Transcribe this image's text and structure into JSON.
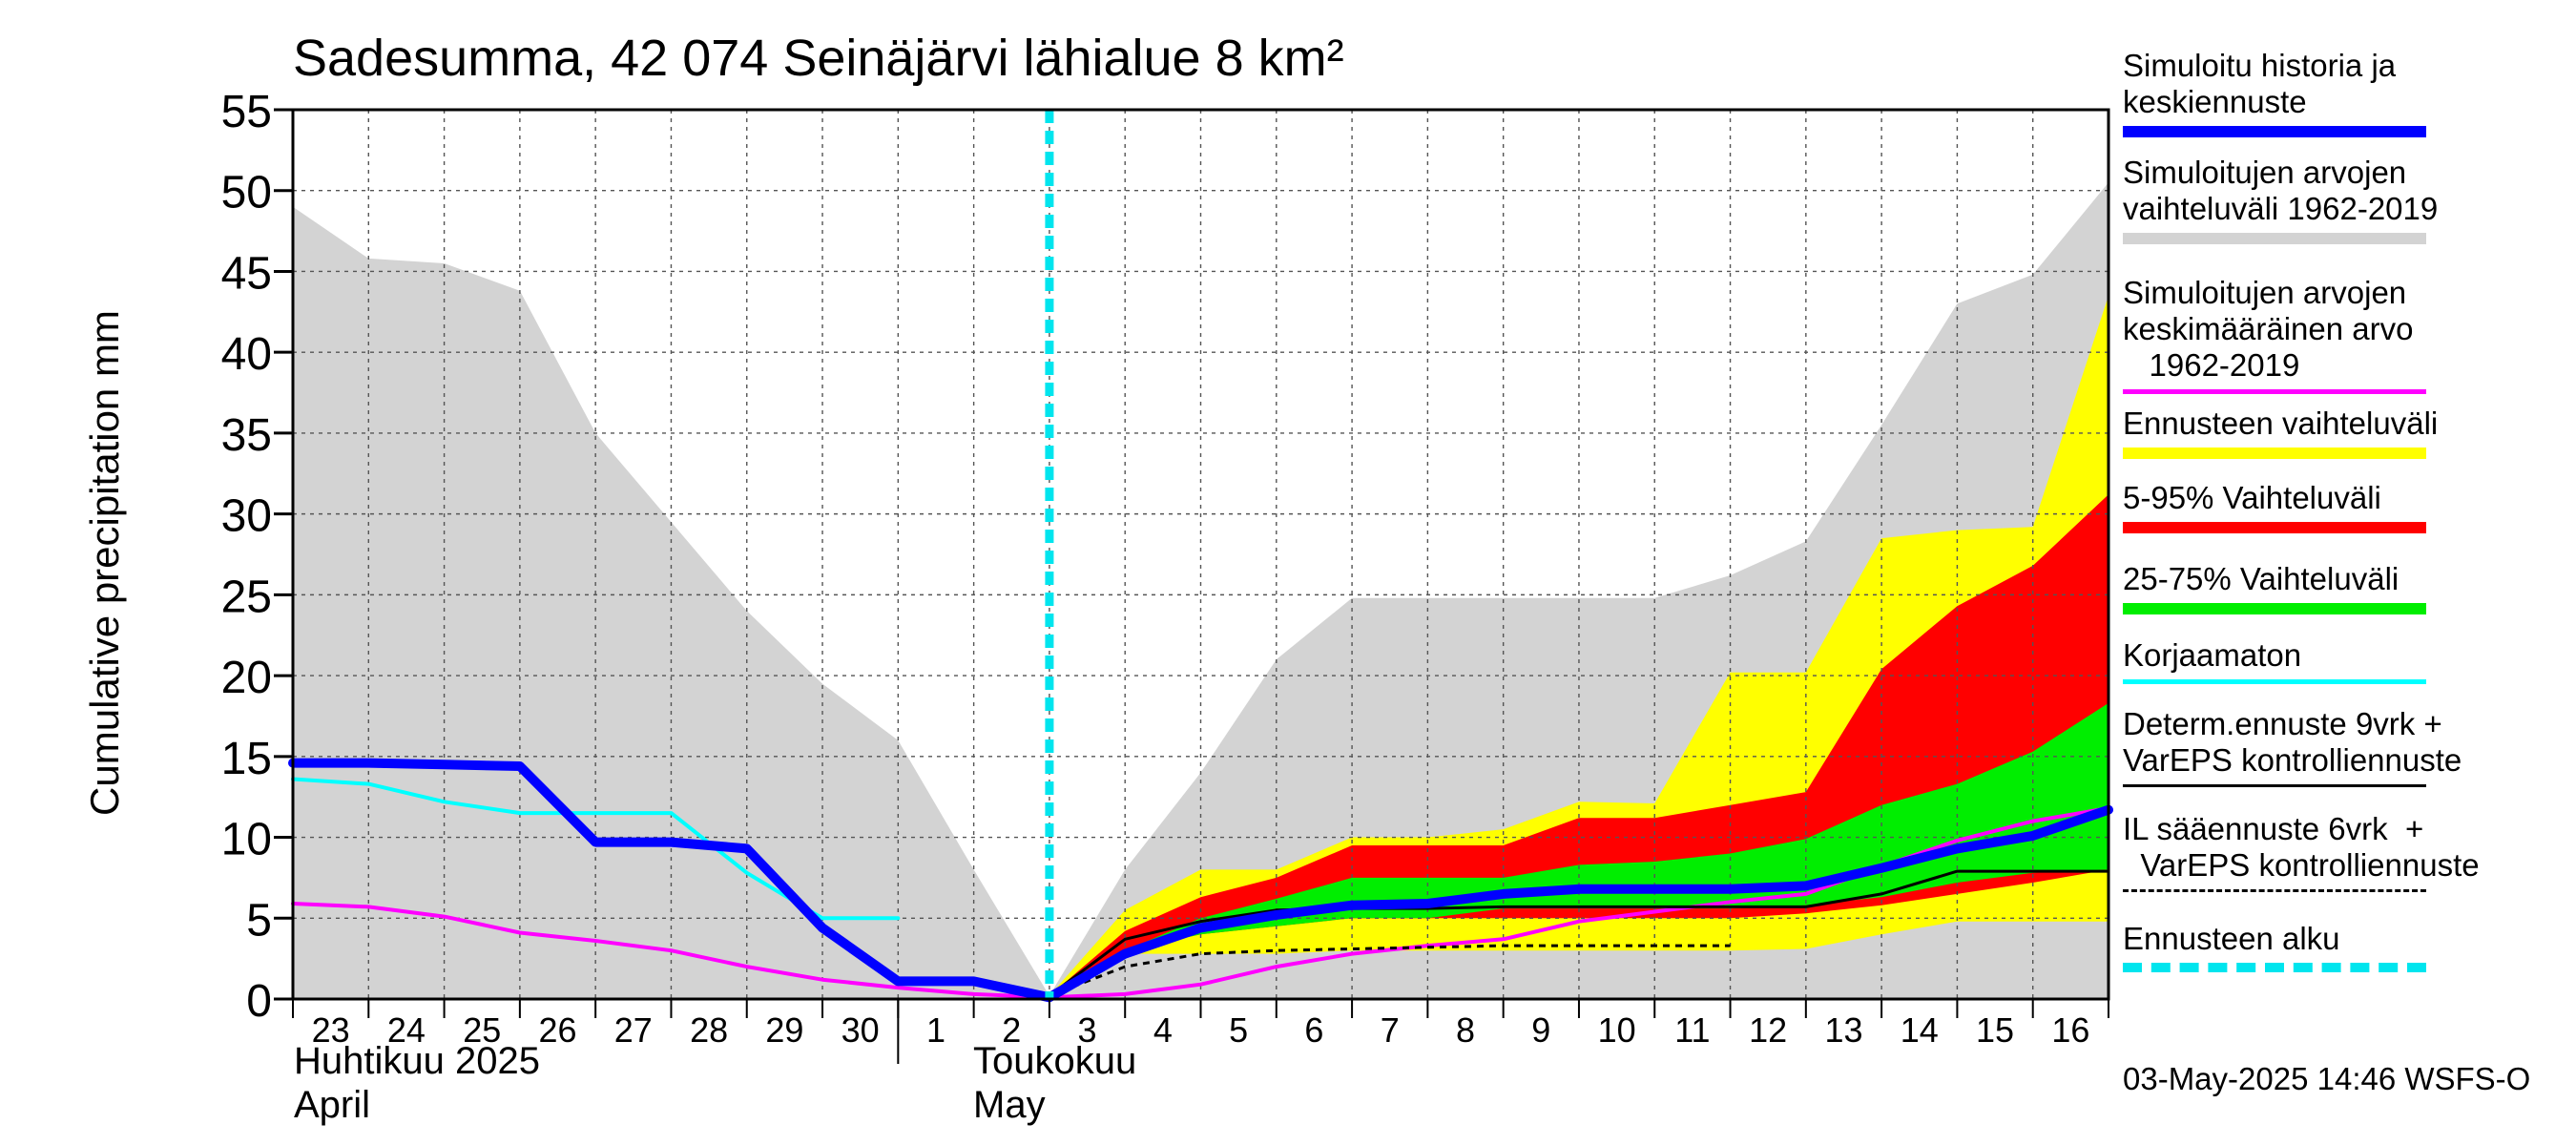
{
  "title": "Sadesumma, 42 074 Seinäjärvi lähialue 8 km²",
  "ylabel": "Cumulative precipitation   mm",
  "x_month_labels": {
    "april_fi": "Huhtikuu  2025",
    "april_en": "April",
    "may_fi": "Toukokuu",
    "may_en": "May"
  },
  "footer": "03-May-2025 14:46 WSFS-O",
  "legend": [
    {
      "label": "Simuloitu historia ja\nkeskiennuste",
      "color": "#0000ff",
      "style": "thick"
    },
    {
      "label": "Simuloitujen arvojen\nvaihteluväli 1962-2019",
      "color": "#d3d3d3",
      "style": "band"
    },
    {
      "label": "Simuloitujen arvojen\nkeskimääräinen arvo\n   1962-2019",
      "color": "#ff00ff",
      "style": "thin"
    },
    {
      "label": "Ennusteen vaihteluväli",
      "color": "#ffff00",
      "style": "band"
    },
    {
      "label": "5-95% Vaihteluväli",
      "color": "#ff0000",
      "style": "band"
    },
    {
      "label": "25-75% Vaihteluväli",
      "color": "#00ee00",
      "style": "band"
    },
    {
      "label": "Korjaamaton",
      "color": "#00ffff",
      "style": "thin"
    },
    {
      "label": "Determ.ennuste 9vrk +\nVarEPS kontrolliennuste",
      "color": "#000000",
      "style": "thinblack"
    },
    {
      "label": "IL sääennuste 6vrk  +\n  VarEPS kontrolliennuste",
      "color": "#000000",
      "style": "dashed"
    },
    {
      "label": "Ennusteen alku",
      "color": "#00e5ee",
      "style": "dotted"
    }
  ],
  "chart_data": {
    "type": "area",
    "title": "Sadesumma, 42 074 Seinäjärvi lähialue 8 km²",
    "ylabel": "Cumulative precipitation   mm",
    "ylim": [
      0,
      55
    ],
    "yticks": [
      0,
      5,
      10,
      15,
      20,
      25,
      30,
      35,
      40,
      45,
      50,
      55
    ],
    "xlim": [
      0,
      24
    ],
    "x_tick_labels": [
      "23",
      "24",
      "25",
      "26",
      "27",
      "28",
      "29",
      "30",
      "1",
      "2",
      "3",
      "4",
      "5",
      "6",
      "7",
      "8",
      "9",
      "10",
      "11",
      "12",
      "13",
      "14",
      "15",
      "16"
    ],
    "x_tick_positions": [
      0,
      1,
      2,
      3,
      4,
      5,
      6,
      7,
      8,
      9,
      10,
      11,
      12,
      13,
      14,
      15,
      16,
      17,
      18,
      19,
      20,
      21,
      22,
      23
    ],
    "x_label_at_center": true,
    "x_note": "x = days since 23 April 2025 00:00; label at day center",
    "grid": true,
    "forecast_start_x": 10,
    "series": [
      {
        "name": "Simuloitujen arvojen vaihteluväli 1962-2019",
        "kind": "band",
        "color": "#d3d3d3",
        "x": [
          0,
          1,
          2,
          3,
          4,
          5,
          6,
          7,
          8,
          9,
          10,
          11,
          12,
          13,
          14,
          15,
          16,
          17,
          18,
          19,
          20,
          21,
          22,
          23,
          24
        ],
        "upper": [
          49,
          45.8,
          45.5,
          43.8,
          35,
          29.5,
          24,
          19.5,
          16,
          8,
          0.2,
          8,
          14,
          21,
          24.8,
          24.8,
          24.8,
          24.8,
          24.8,
          26.2,
          28.3,
          35.5,
          43,
          44.8,
          50.5
        ],
        "lower": [
          0,
          0,
          0,
          0,
          0,
          0,
          0,
          0,
          0,
          0,
          0,
          0,
          0,
          0,
          0,
          0,
          0,
          0,
          0,
          0,
          0,
          0,
          0,
          0,
          0
        ]
      },
      {
        "name": "Ennusteen vaihteluväli",
        "kind": "band",
        "color": "#ffff00",
        "x": [
          10,
          11,
          12,
          13,
          14,
          15,
          16,
          17,
          18,
          19,
          20,
          21,
          22,
          23,
          24
        ],
        "upper": [
          0.2,
          5.5,
          8,
          8,
          10,
          10,
          10.5,
          12.2,
          12.1,
          20.2,
          20.2,
          28.5,
          29,
          29.2,
          43.5
        ],
        "lower": [
          0.2,
          2.8,
          2.8,
          2.8,
          3,
          3,
          3,
          3,
          3,
          3,
          3.1,
          4,
          4.8,
          4.8,
          4.8
        ]
      },
      {
        "name": "5-95% Vaihteluväli",
        "kind": "band",
        "color": "#ff0000",
        "x": [
          10,
          11,
          12,
          13,
          14,
          15,
          16,
          17,
          18,
          19,
          20,
          21,
          22,
          23,
          24
        ],
        "upper": [
          0.2,
          4.2,
          6.3,
          7.5,
          9.5,
          9.5,
          9.5,
          11.2,
          11.2,
          12,
          12.8,
          20.4,
          24.3,
          26.8,
          31.2
        ],
        "lower": [
          0.2,
          3,
          4,
          4.5,
          5,
          5,
          5,
          5,
          5,
          5,
          5.3,
          5.8,
          6.5,
          7.2,
          8
        ]
      },
      {
        "name": "25-75% Vaihteluväli",
        "kind": "band",
        "color": "#00ee00",
        "x": [
          10,
          11,
          12,
          13,
          14,
          15,
          16,
          17,
          18,
          19,
          20,
          21,
          22,
          23,
          24
        ],
        "upper": [
          0.2,
          3,
          5,
          6.2,
          7.5,
          7.5,
          7.5,
          8.3,
          8.5,
          9,
          9.9,
          12,
          13.3,
          15.3,
          18.3
        ],
        "lower": [
          0.2,
          3,
          4,
          4.5,
          5,
          5,
          5.6,
          5.6,
          5.6,
          5.6,
          5.8,
          6.3,
          7.2,
          7.8,
          8
        ]
      },
      {
        "name": "Simuloitujen arvojen keskimääräinen arvo 1962-2019",
        "kind": "line",
        "color": "#ff00ff",
        "x": [
          0,
          1,
          2,
          3,
          4,
          5,
          6,
          7,
          8,
          9,
          10,
          11,
          12,
          13,
          14,
          15,
          16,
          17,
          18,
          19,
          20,
          21,
          22,
          23,
          24
        ],
        "y": [
          5.9,
          5.7,
          5.1,
          4.1,
          3.6,
          3,
          2,
          1.2,
          0.7,
          0.3,
          0.1,
          0.3,
          0.9,
          2,
          2.8,
          3.3,
          3.7,
          4.8,
          5.4,
          6,
          6.5,
          8.2,
          9.8,
          11,
          11.8
        ]
      },
      {
        "name": "Korjaamaton",
        "kind": "line",
        "color": "#00ffff",
        "x": [
          0,
          1,
          2,
          3,
          4,
          5,
          6,
          7,
          8
        ],
        "y": [
          13.6,
          13.3,
          12.2,
          11.5,
          11.5,
          11.5,
          7.8,
          5,
          5
        ]
      },
      {
        "name": "IL sääennuste 6vrk + VarEPS kontrolliennuste",
        "kind": "dashed",
        "color": "#000000",
        "x": [
          10,
          11,
          12,
          13,
          14,
          15,
          16,
          17,
          18,
          19
        ],
        "y": [
          0.2,
          2,
          2.8,
          3,
          3.1,
          3.2,
          3.3,
          3.3,
          3.3,
          3.3
        ]
      },
      {
        "name": "Determ.ennuste 9vrk + VarEPS kontrolliennuste",
        "kind": "line",
        "color": "#000000",
        "x": [
          10,
          11,
          12,
          13,
          14,
          15,
          16,
          17,
          18,
          19,
          20,
          21,
          22,
          23,
          24
        ],
        "y": [
          0.2,
          3.7,
          4.8,
          5.5,
          5.6,
          5.6,
          5.7,
          5.7,
          5.7,
          5.7,
          5.7,
          6.5,
          7.9,
          7.9,
          7.9
        ]
      },
      {
        "name": "Simuloitu historia ja keskiennuste",
        "kind": "thick",
        "color": "#0000ff",
        "x": [
          0,
          1,
          2,
          3,
          4,
          5,
          6,
          7,
          8,
          9,
          10,
          11,
          12,
          13,
          14,
          15,
          16,
          17,
          18,
          19,
          20,
          21,
          22,
          23,
          24
        ],
        "y": [
          14.6,
          14.6,
          14.5,
          14.4,
          9.7,
          9.7,
          9.3,
          4.4,
          1.1,
          1.1,
          0.1,
          2.8,
          4.4,
          5.2,
          5.8,
          5.9,
          6.5,
          6.8,
          6.8,
          6.8,
          7,
          8.1,
          9.3,
          10.1,
          11.7
        ]
      }
    ]
  }
}
